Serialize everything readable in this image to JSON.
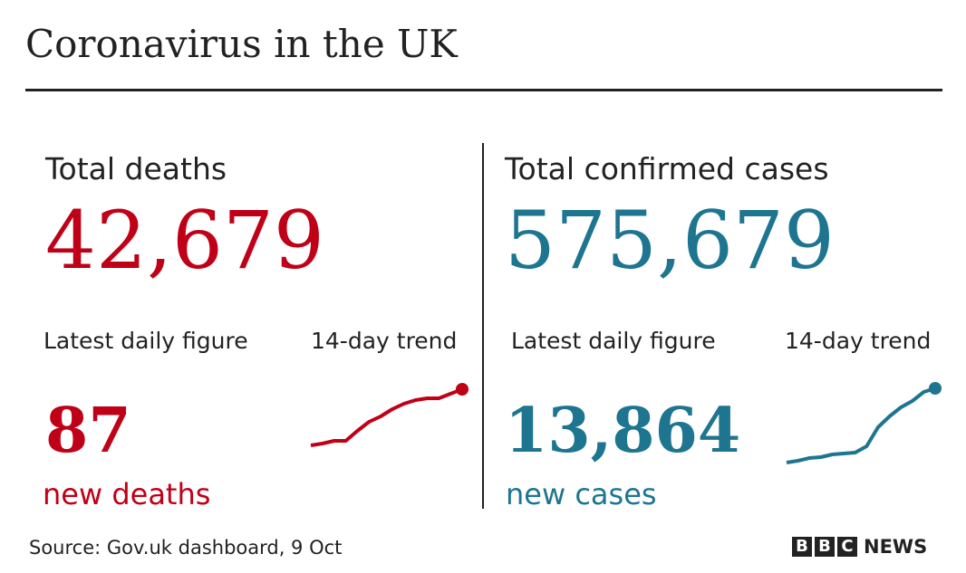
{
  "header": {
    "title": "Coronavirus in the UK"
  },
  "panels": [
    {
      "heading": "Total deaths",
      "total": "42,679",
      "latest_label": "Latest daily figure",
      "trend_label": "14-day trend",
      "latest": "87",
      "latest_unit": "new deaths",
      "color": "#c00017",
      "trend": [
        0,
        2,
        5,
        5,
        16,
        26,
        32,
        40,
        46,
        50,
        52,
        52,
        57,
        62
      ]
    },
    {
      "heading": "Total confirmed cases",
      "total": "575,679",
      "latest_label": "Latest daily figure",
      "trend_label": "14-day trend",
      "latest": "13,864",
      "latest_unit": "new cases",
      "color": "#1d7590",
      "trend": [
        0,
        2,
        5,
        6,
        9,
        10,
        11,
        18,
        39,
        51,
        61,
        68,
        78,
        82
      ]
    }
  ],
  "source": "Source: Gov.uk dashboard, 9 Oct",
  "logo": {
    "letters": [
      "B",
      "B",
      "C"
    ],
    "text": "NEWS"
  }
}
